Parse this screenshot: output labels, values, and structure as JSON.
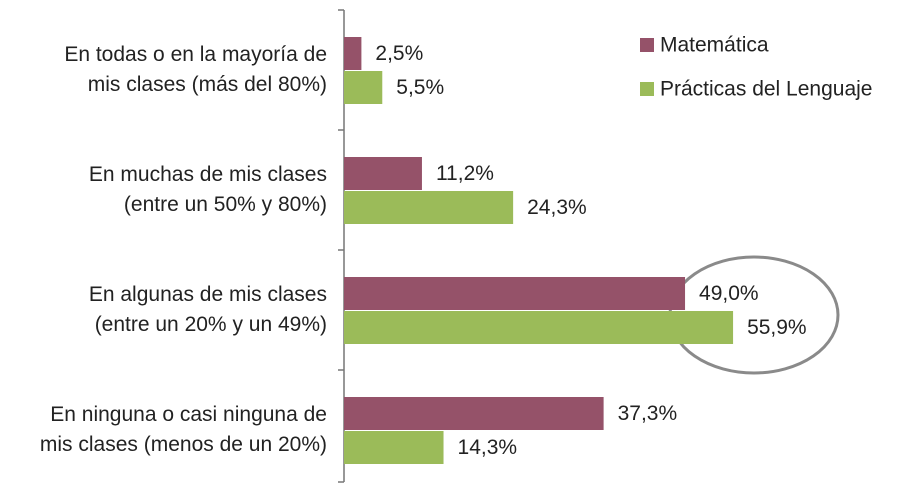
{
  "chart_data": {
    "type": "hbar",
    "categories": [
      "En todas o en la mayoría de\nmis clases (más del 80%)",
      "En muchas de mis clases\n(entre un 50% y 80%)",
      "En algunas de mis clases\n(entre un 20% y un 49%)",
      "En ninguna o casi ninguna de\nmis clases (menos de un 20%)"
    ],
    "series": [
      {
        "name": "Matemática",
        "color": "#955269",
        "values": [
          2.5,
          11.2,
          49.0,
          37.3
        ],
        "value_labels": [
          "2,5%",
          "11,2%",
          "49,0%",
          "37,3%"
        ]
      },
      {
        "name": "Prácticas del Lenguaje",
        "color": "#9bbb59",
        "values": [
          5.5,
          24.3,
          55.9,
          14.3
        ],
        "value_labels": [
          "5,5%",
          "24,3%",
          "55,9%",
          "14,3%"
        ]
      }
    ],
    "legend": "top-right"
  }
}
